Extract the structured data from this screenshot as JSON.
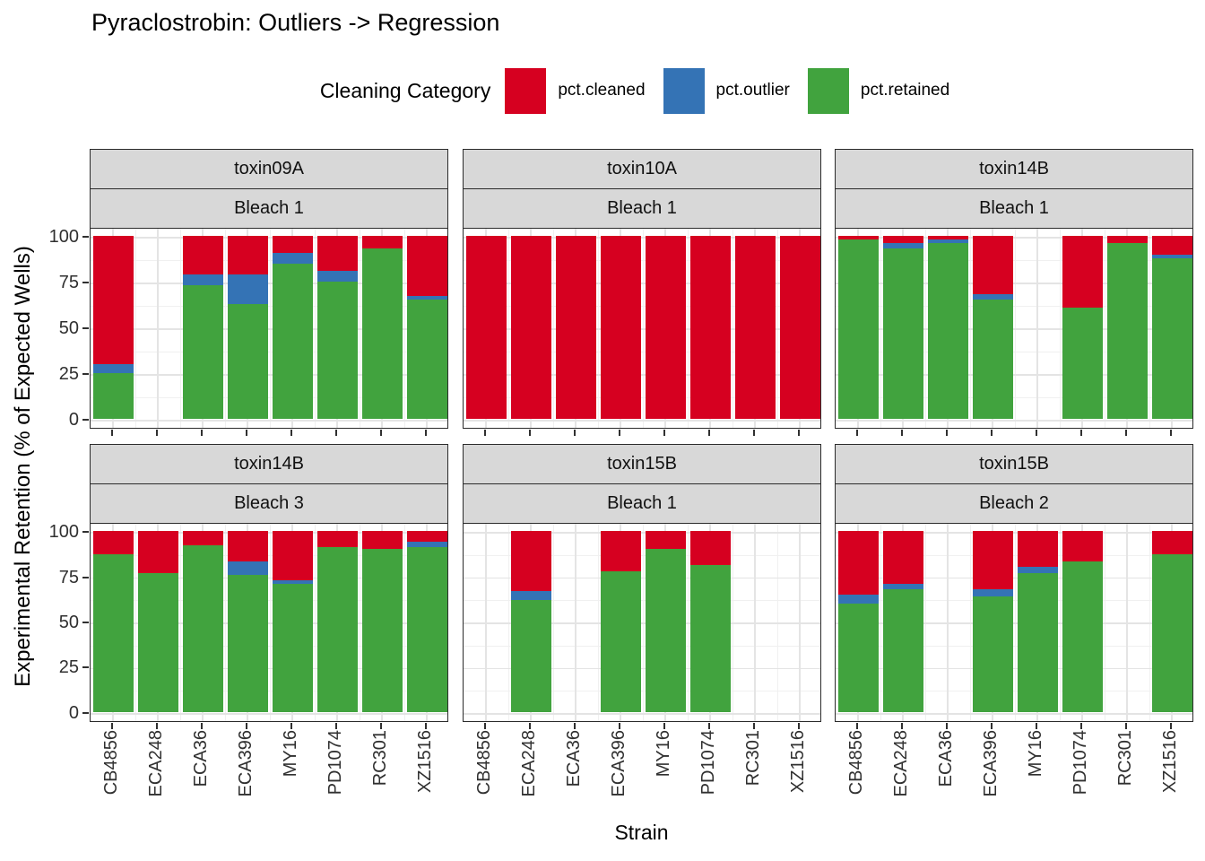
{
  "title": "Pyraclostrobin: Outliers -> Regression",
  "chart_data": {
    "type": "bar",
    "stacked": true,
    "title": "Pyraclostrobin: Outliers -> Regression",
    "legend_title": "Cleaning Category",
    "xlabel": "Strain",
    "ylabel": "Experimental Retention (% of Expected Wells)",
    "ylim": [
      0,
      100
    ],
    "yticks": [
      0,
      25,
      50,
      75,
      100
    ],
    "grid": "major and minor, light gray on white, black panel border",
    "legend_position": "top",
    "categories": [
      "CB4856",
      "ECA248",
      "ECA36",
      "ECA396",
      "MY16",
      "PD1074",
      "RC301",
      "XZ1516"
    ],
    "series": [
      {
        "key": "cleaned",
        "label": "pct.cleaned",
        "color": "#d60020"
      },
      {
        "key": "outlier",
        "label": "pct.outlier",
        "color": "#3473b5"
      },
      {
        "key": "retained",
        "label": "pct.retained",
        "color": "#41a33e"
      }
    ],
    "stack_order_bottom_to_top": [
      "retained",
      "outlier",
      "cleaned"
    ],
    "facet_layout": {
      "rows": 2,
      "cols": 3,
      "strip_levels": [
        "toxin",
        "bleach"
      ]
    },
    "facets": [
      {
        "toxin": "toxin09A",
        "bleach": "Bleach 1",
        "bars": {
          "CB4856": {
            "retained": 25,
            "outlier": 5,
            "cleaned": 70
          },
          "ECA36": {
            "retained": 73,
            "outlier": 6,
            "cleaned": 21
          },
          "ECA396": {
            "retained": 63,
            "outlier": 16,
            "cleaned": 21
          },
          "MY16": {
            "retained": 85,
            "outlier": 6,
            "cleaned": 9
          },
          "PD1074": {
            "retained": 75,
            "outlier": 6,
            "cleaned": 19
          },
          "RC301": {
            "retained": 93,
            "outlier": 0,
            "cleaned": 7
          },
          "XZ1516": {
            "retained": 65,
            "outlier": 2,
            "cleaned": 33
          }
        }
      },
      {
        "toxin": "toxin10A",
        "bleach": "Bleach 1",
        "bars": {
          "CB4856": {
            "retained": 0,
            "outlier": 0,
            "cleaned": 100
          },
          "ECA248": {
            "retained": 0,
            "outlier": 0,
            "cleaned": 100
          },
          "ECA36": {
            "retained": 0,
            "outlier": 0,
            "cleaned": 100
          },
          "ECA396": {
            "retained": 0,
            "outlier": 0,
            "cleaned": 100
          },
          "MY16": {
            "retained": 0,
            "outlier": 0,
            "cleaned": 100
          },
          "PD1074": {
            "retained": 0,
            "outlier": 0,
            "cleaned": 100
          },
          "RC301": {
            "retained": 0,
            "outlier": 0,
            "cleaned": 100
          },
          "XZ1516": {
            "retained": 0,
            "outlier": 0,
            "cleaned": 100
          }
        }
      },
      {
        "toxin": "toxin14B",
        "bleach": "Bleach 1",
        "bars": {
          "CB4856": {
            "retained": 98,
            "outlier": 0,
            "cleaned": 2
          },
          "ECA248": {
            "retained": 93,
            "outlier": 3,
            "cleaned": 4
          },
          "ECA36": {
            "retained": 96,
            "outlier": 2,
            "cleaned": 2
          },
          "ECA396": {
            "retained": 65,
            "outlier": 3,
            "cleaned": 32
          },
          "PD1074": {
            "retained": 61,
            "outlier": 0,
            "cleaned": 39
          },
          "RC301": {
            "retained": 96,
            "outlier": 0,
            "cleaned": 4
          },
          "XZ1516": {
            "retained": 88,
            "outlier": 2,
            "cleaned": 10
          }
        }
      },
      {
        "toxin": "toxin14B",
        "bleach": "Bleach 3",
        "bars": {
          "CB4856": {
            "retained": 87,
            "outlier": 0,
            "cleaned": 13
          },
          "ECA248": {
            "retained": 77,
            "outlier": 0,
            "cleaned": 23
          },
          "ECA36": {
            "retained": 92,
            "outlier": 0,
            "cleaned": 8
          },
          "ECA396": {
            "retained": 76,
            "outlier": 7,
            "cleaned": 17
          },
          "MY16": {
            "retained": 71,
            "outlier": 2,
            "cleaned": 27
          },
          "PD1074": {
            "retained": 91,
            "outlier": 0,
            "cleaned": 9
          },
          "RC301": {
            "retained": 90,
            "outlier": 0,
            "cleaned": 10
          },
          "XZ1516": {
            "retained": 91,
            "outlier": 3,
            "cleaned": 6
          }
        }
      },
      {
        "toxin": "toxin15B",
        "bleach": "Bleach 1",
        "bars": {
          "ECA248": {
            "retained": 62,
            "outlier": 5,
            "cleaned": 33
          },
          "ECA396": {
            "retained": 78,
            "outlier": 0,
            "cleaned": 22
          },
          "MY16": {
            "retained": 90,
            "outlier": 0,
            "cleaned": 10
          },
          "PD1074": {
            "retained": 81,
            "outlier": 0,
            "cleaned": 19
          }
        }
      },
      {
        "toxin": "toxin15B",
        "bleach": "Bleach 2",
        "bars": {
          "CB4856": {
            "retained": 60,
            "outlier": 5,
            "cleaned": 35
          },
          "ECA248": {
            "retained": 68,
            "outlier": 3,
            "cleaned": 29
          },
          "ECA396": {
            "retained": 64,
            "outlier": 4,
            "cleaned": 32
          },
          "MY16": {
            "retained": 77,
            "outlier": 3,
            "cleaned": 20
          },
          "PD1074": {
            "retained": 83,
            "outlier": 0,
            "cleaned": 17
          },
          "XZ1516": {
            "retained": 87,
            "outlier": 0,
            "cleaned": 13
          }
        }
      }
    ]
  }
}
